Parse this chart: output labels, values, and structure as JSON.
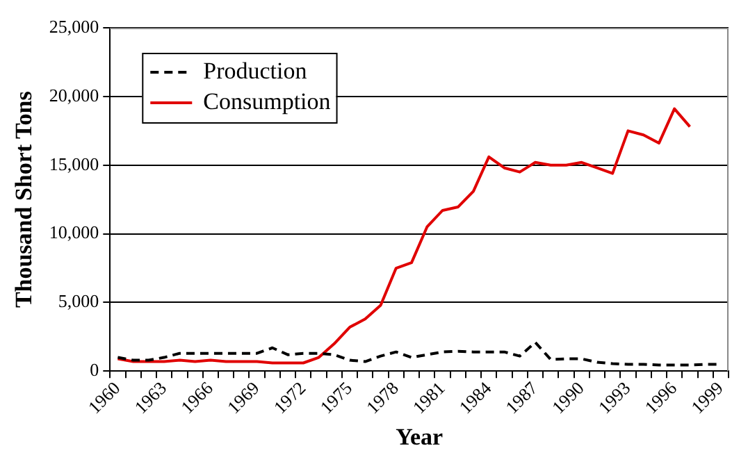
{
  "chart_data": {
    "type": "line",
    "xlabel": "Year",
    "ylabel": "Thousand Short Tons",
    "categories": [
      "1960",
      null,
      null,
      "1963",
      null,
      null,
      "1966",
      null,
      null,
      "1969",
      null,
      null,
      "1972",
      null,
      null,
      "1975",
      null,
      null,
      "1978",
      null,
      null,
      "1981",
      null,
      null,
      "1984",
      null,
      null,
      "1987",
      null,
      null,
      "1990",
      null,
      null,
      "1993",
      null,
      null,
      "1996",
      null,
      null,
      "1999"
    ],
    "series": [
      {
        "name": "Production",
        "color": "#000000",
        "line_style": "dashed",
        "values": [
          1000,
          800,
          800,
          1000,
          1300,
          1300,
          1300,
          1300,
          1300,
          1300,
          1700,
          1200,
          1300,
          1300,
          1200,
          800,
          700,
          1100,
          1400,
          1000,
          1200,
          1400,
          1450,
          1400,
          1400,
          1400,
          1100,
          2100,
          850,
          900,
          900,
          650,
          550,
          500,
          500,
          450,
          450,
          450,
          500,
          500
        ]
      },
      {
        "name": "Consumption",
        "color": "#e00000",
        "line_style": "solid",
        "values": [
          900,
          700,
          700,
          700,
          800,
          700,
          800,
          700,
          700,
          700,
          600,
          600,
          600,
          1000,
          2000,
          3200,
          3800,
          4800,
          7500,
          7900,
          10500,
          11700,
          11950,
          13100,
          15600,
          14800,
          14500,
          15200,
          15000,
          15000,
          15200,
          14800,
          14400,
          17500,
          17200,
          16600,
          19100,
          17800,
          null,
          null
        ]
      }
    ],
    "ylim": [
      0,
      25000
    ],
    "yticks": [
      {
        "value": 0,
        "label": "0"
      },
      {
        "value": 5000,
        "label": "5,000"
      },
      {
        "value": 10000,
        "label": "10,000"
      },
      {
        "value": 15000,
        "label": "15,000"
      },
      {
        "value": 20000,
        "label": "20,000"
      },
      {
        "value": 25000,
        "label": "25,000"
      }
    ],
    "grid": "y",
    "legend": "top left",
    "marker": "none"
  }
}
